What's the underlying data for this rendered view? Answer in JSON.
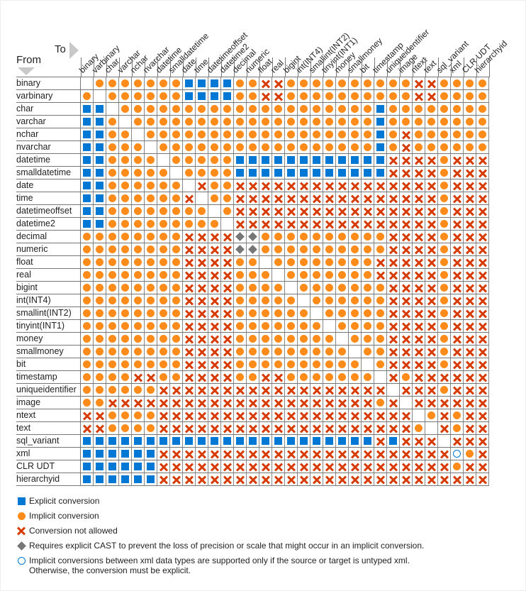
{
  "axis": {
    "to_label": "To",
    "from_label": "From"
  },
  "columns": [
    "binary",
    "varbinary",
    "char",
    "varchar",
    "nchar",
    "nvarchar",
    "datetime",
    "smalldatetime",
    "date",
    "time",
    "datetimeoffset",
    "datetime2",
    "decimal",
    "numeric",
    "float",
    "real",
    "bigint",
    "int(INT4)",
    "smallint(INT2)",
    "tinyint(INT1)",
    "money",
    "smallmoney",
    "bit",
    "timestamp",
    "uniqueidentifier",
    "image",
    "ntext",
    "text",
    "sql_variant",
    "xml",
    "CLR UDT",
    "hierarchyid"
  ],
  "rows": [
    {
      "label": "binary",
      "cells": ".OOOOOOOSSSSOOXXOOOOOOOOOOXXOOOO"
    },
    {
      "label": "varbinary",
      "cells": "O.OOOOOOSSSSOOXXOOOOOOOOOOXXOOOO"
    },
    {
      "label": "char",
      "cells": "SS.OOOOOOOOOOOOOOOOOOOOSOOOOOOOO"
    },
    {
      "label": "varchar",
      "cells": "SSO.OOOOOOOOOOOOOOOOOOOSOOOOOOOO"
    },
    {
      "label": "nchar",
      "cells": "SSOO.OOOOOOOOOOOOOOOOOOSOXOOOOOO"
    },
    {
      "label": "nvarchar",
      "cells": "SSOOO.OOOOOOOOOOOOOOOOOSOXOOOOOO"
    },
    {
      "label": "datetime",
      "cells": "SSOOOO.OOOOOSSSSSSSSSSSSXXXXOXXX"
    },
    {
      "label": "smalldatetime",
      "cells": "SSOOOOO.OOOOSSSSSSSSSSSSXXXXOXXX"
    },
    {
      "label": "date",
      "cells": "SSOOOOOO.XOOXXXXXXXXXXXXXXXXOXXX"
    },
    {
      "label": "time",
      "cells": "SSOOOOOOX.OOXXXXXXXXXXXXXXXXOXXX"
    },
    {
      "label": "datetimeoffset",
      "cells": "SSOOOOOOOO.OXXXXXXXXXXXXXXXXOXXX"
    },
    {
      "label": "datetime2",
      "cells": "SSOOOOOOOOO.XXXXXXXXXXXXXXXXOXXX"
    },
    {
      "label": "decimal",
      "cells": "OOOOOOOOXXXXDDOOOOOOOOOOXXXXOXXX"
    },
    {
      "label": "numeric",
      "cells": "OOOOOOOOXXXXDDOOOOOOOOOOXXXXOXXX"
    },
    {
      "label": "float",
      "cells": "OOOOOOOOXXXXOO.OOOOOOOOXXXXXOXXX"
    },
    {
      "label": "real",
      "cells": "OOOOOOOOXXXXOOO.OOOOOOOXXXXXOXXX"
    },
    {
      "label": "bigint",
      "cells": "OOOOOOOOXXXXOOOO.OOOOOOOXXXXOXXX"
    },
    {
      "label": "int(INT4)",
      "cells": "OOOOOOOOXXXXOOOOO.OOOOOOXXXXOXXX"
    },
    {
      "label": "smallint(INT2)",
      "cells": "OOOOOOOOXXXXOOOOOO.OOOOOXXXXOXXX"
    },
    {
      "label": "tinyint(INT1)",
      "cells": "OOOOOOOOXXXXOOOOOOO.OOOOXXXXOXXX"
    },
    {
      "label": "money",
      "cells": "OOOOOOOOXXXXOOOOOOOO.OOOXXXXOXXX"
    },
    {
      "label": "smallmoney",
      "cells": "OOOOOOOOXXXXOOOOOOOOO.OOXXXXOXXX"
    },
    {
      "label": "bit",
      "cells": "OOOOOOOOXXXXOOOOOOOOOO.OXXXXOXXX"
    },
    {
      "label": "timestamp",
      "cells": "OOOOXXOOXXXXOOXXOOOOOOO.XOXXXXXX"
    },
    {
      "label": "uniqueidentifier",
      "cells": "OOOOOOXXXXXXXXXXXXXXXXXX.XXXOXXX"
    },
    {
      "label": "image",
      "cells": "OOXXXXXXXXXXXXXXXXXXXXXOX.XXXXXX"
    },
    {
      "label": "ntext",
      "cells": "XXOOOOXXXXXXXXXXXXXXXXXXXX.OXOXX"
    },
    {
      "label": "text",
      "cells": "XXOOOOXXXXXXXXXXXXXXXXXXXXO.XOXX"
    },
    {
      "label": "sql_variant",
      "cells": "SSSSSSSSSSSSSSSSSSSSSSSXSXXX.XXX"
    },
    {
      "label": "xml",
      "cells": "SSSSSSXXXXXXXXXXXXXXXXXXXXXXXUOX"
    },
    {
      "label": "CLR UDT",
      "cells": "SSSSSSXXXXXXXXXXXXXXXXXXXXXXXOXX"
    },
    {
      "label": "hierarchyid",
      "cells": "SSSSSSXXXXXXXXXXXXXXXXXXXXXXXXXX"
    }
  ],
  "legend": [
    {
      "symbol": "S",
      "kind": "explicit",
      "color": "#0078d4",
      "text": "Explicit conversion"
    },
    {
      "symbol": "O",
      "kind": "implicit",
      "color": "#ff8c1a",
      "text": "Implicit conversion"
    },
    {
      "symbol": "X",
      "kind": "not-allowed",
      "color": "#d83b01",
      "text": "Conversion not allowed"
    },
    {
      "symbol": "D",
      "kind": "requires-cast",
      "color": "#767676",
      "text": "Requires explicit CAST to prevent the loss of precision or scale that might occur in an implicit conversion."
    },
    {
      "symbol": "U",
      "kind": "untyped-xml",
      "color": "#0078d4",
      "text": "Implicit conversions between xml data types are supported only if the source or target is untyped xml.",
      "text2": "Otherwise, the conversion must be explicit."
    }
  ]
}
